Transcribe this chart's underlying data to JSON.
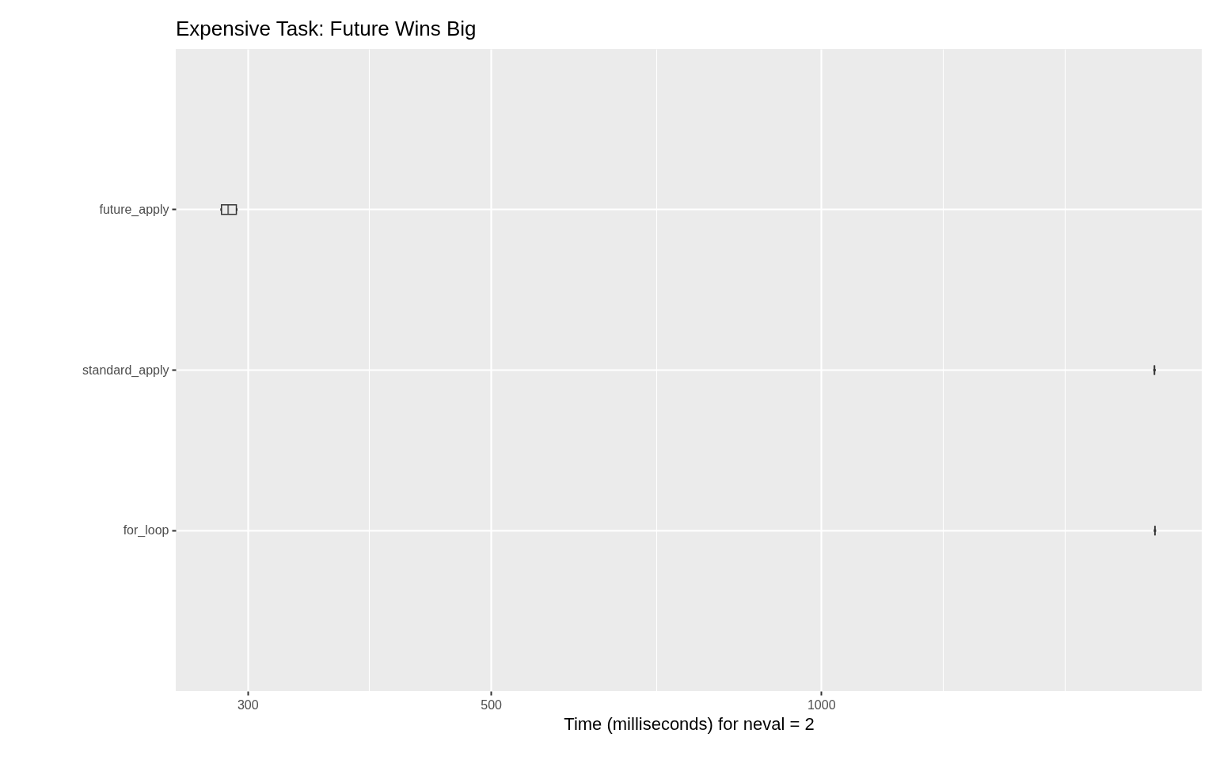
{
  "chart_data": {
    "type": "box",
    "title": "Expensive Task: Future Wins Big",
    "xlabel": "Time (milliseconds) for neval = 2",
    "orientation": "horizontal",
    "log": "x",
    "categories": [
      "future_apply",
      "standard_apply",
      "for_loop"
    ],
    "boxes": [
      {
        "low": 284,
        "q1": 284,
        "median": 288,
        "q3": 293,
        "high": 293
      },
      {
        "low": 2013,
        "q1": 2013,
        "median": 2013,
        "q3": 2013,
        "high": 2013
      },
      {
        "low": 2015,
        "q1": 2015,
        "median": 2015,
        "q3": 2015,
        "high": 2015
      }
    ],
    "xlim": [
      258,
      2223
    ],
    "xticks": [
      300,
      {
        "value": 387,
        "label": null
      },
      500,
      {
        "value": 707,
        "label": null
      },
      1000,
      {
        "value": 1291,
        "label": null
      },
      {
        "value": 1667,
        "label": null
      }
    ],
    "grid": true
  }
}
